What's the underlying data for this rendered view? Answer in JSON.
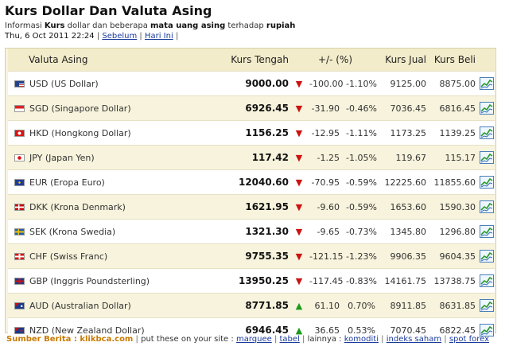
{
  "header": {
    "title": "Kurs Dollar Dan Valuta Asing",
    "info_prefix": "Informasi",
    "info_kurs": "Kurs",
    "info_middle": "dollar dan beberapa",
    "info_mata_uang_asing": "mata uang asing",
    "info_suffix": "terhadap",
    "info_rupiah": "rupiah",
    "date": "Thu, 6 Oct 2011 22:24",
    "link_sebelum": "Sebelum",
    "link_hari_ini": "Hari Ini"
  },
  "table": {
    "columns": {
      "valuta": "Valuta Asing",
      "tengah": "Kurs Tengah",
      "change": "+/- (%)",
      "jual": "Kurs Jual",
      "beli": "Kurs Beli"
    },
    "rows": [
      {
        "code": "USD",
        "name": "USD (US Dollar)",
        "tengah": "9000.00",
        "dir": "down",
        "change": "-100.00",
        "pct": "-1.10%",
        "jual": "9125.00",
        "beli": "8875.00",
        "flag": "us-flag"
      },
      {
        "code": "SGD",
        "name": "SGD (Singapore Dollar)",
        "tengah": "6926.45",
        "dir": "down",
        "change": "-31.90",
        "pct": "-0.46%",
        "jual": "7036.45",
        "beli": "6816.45",
        "flag": "sg-flag"
      },
      {
        "code": "HKD",
        "name": "HKD (Hongkong Dollar)",
        "tengah": "1156.25",
        "dir": "down",
        "change": "-12.95",
        "pct": "-1.11%",
        "jual": "1173.25",
        "beli": "1139.25",
        "flag": "hk-flag"
      },
      {
        "code": "JPY",
        "name": "JPY (Japan Yen)",
        "tengah": "117.42",
        "dir": "down",
        "change": "-1.25",
        "pct": "-1.05%",
        "jual": "119.67",
        "beli": "115.17",
        "flag": "jp-flag"
      },
      {
        "code": "EUR",
        "name": "EUR (Eropa Euro)",
        "tengah": "12040.60",
        "dir": "down",
        "change": "-70.95",
        "pct": "-0.59%",
        "jual": "12225.60",
        "beli": "11855.60",
        "flag": "eu-flag"
      },
      {
        "code": "DKK",
        "name": "DKK (Krona Denmark)",
        "tengah": "1621.95",
        "dir": "down",
        "change": "-9.60",
        "pct": "-0.59%",
        "jual": "1653.60",
        "beli": "1590.30",
        "flag": "dk-flag"
      },
      {
        "code": "SEK",
        "name": "SEK (Krona Swedia)",
        "tengah": "1321.30",
        "dir": "down",
        "change": "-9.65",
        "pct": "-0.73%",
        "jual": "1345.80",
        "beli": "1296.80",
        "flag": "se-flag"
      },
      {
        "code": "CHF",
        "name": "CHF (Swiss Franc)",
        "tengah": "9755.35",
        "dir": "down",
        "change": "-121.15",
        "pct": "-1.23%",
        "jual": "9906.35",
        "beli": "9604.35",
        "flag": "ch-flag"
      },
      {
        "code": "GBP",
        "name": "GBP (Inggris Poundsterling)",
        "tengah": "13950.25",
        "dir": "down",
        "change": "-117.45",
        "pct": "-0.83%",
        "jual": "14161.75",
        "beli": "13738.75",
        "flag": "gb-flag"
      },
      {
        "code": "AUD",
        "name": "AUD (Australian Dollar)",
        "tengah": "8771.85",
        "dir": "up",
        "change": "61.10",
        "pct": "0.70%",
        "jual": "8911.85",
        "beli": "8631.85",
        "flag": "au-flag"
      },
      {
        "code": "NZD",
        "name": "NZD (New Zealand Dollar)",
        "tengah": "6946.45",
        "dir": "up",
        "change": "36.65",
        "pct": "0.53%",
        "jual": "7070.45",
        "beli": "6822.45",
        "flag": "nz-flag"
      }
    ]
  },
  "footer": {
    "source_label": "Sumber Berita : klikbca.com",
    "put_these": "put these on your site :",
    "link_marquee": "marquee",
    "link_tabel": "tabel",
    "lainnya": "lainnya :",
    "link_komoditi": "komoditi",
    "link_indeks_saham": "indeks saham",
    "link_spot_forex": "spot forex"
  },
  "colors": {
    "down_arrow": "#cc1111",
    "up_arrow": "#1a9a1a",
    "panel_bg": "#f7f3dc",
    "link": "#1a3a9c",
    "source_label": "#c87a00"
  }
}
